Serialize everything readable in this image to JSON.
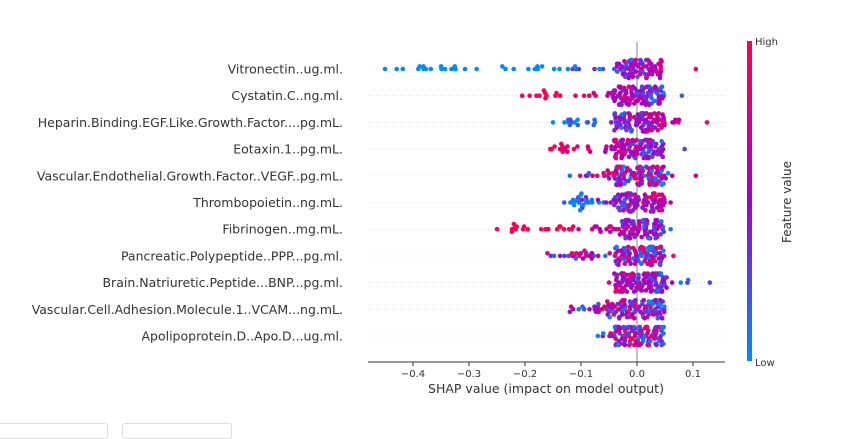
{
  "chart_data": {
    "type": "scatter",
    "subtype": "shap-beeswarm",
    "xlabel": "SHAP value (impact on model output)",
    "xticks": [
      -0.4,
      -0.3,
      -0.2,
      -0.1,
      0.0,
      0.1
    ],
    "xtick_labels": [
      "−0.4",
      "−0.3",
      "−0.2",
      "−0.1",
      "0.0",
      "0.1"
    ],
    "xlim": [
      -0.48,
      0.155
    ],
    "features": [
      "Vitronectin..ug.ml.",
      "Cystatin.C..ng.ml.",
      "Heparin.Binding.EGF.Like.Growth.Factor....pg.mL.",
      "Eotaxin.1..pg.mL.",
      "Vascular.Endothelial.Growth.Factor..VEGF..pg.mL.",
      "Thrombopoietin..ng.mL.",
      "Fibrinogen..mg.mL.",
      "Pancreatic.Polypeptide..PPP...pg.ml.",
      "Brain.Natriuretic.Peptide...BNP...pg.ml.",
      "Vascular.Cell.Adhesion.Molecule.1..VCAM...ng.mL.",
      "Apolipoprotein.D..Apo.D...ug.ml."
    ],
    "feature_ranges": [
      {
        "min": -0.45,
        "max": 0.105,
        "low_side": "negative"
      },
      {
        "min": -0.205,
        "max": 0.08,
        "low_side": "positive"
      },
      {
        "min": -0.15,
        "max": 0.125,
        "low_side": "negative"
      },
      {
        "min": -0.155,
        "max": 0.085,
        "low_side": "positive"
      },
      {
        "min": -0.12,
        "max": 0.105,
        "low_side": "mixed"
      },
      {
        "min": -0.13,
        "max": 0.06,
        "low_side": "negative"
      },
      {
        "min": -0.25,
        "max": 0.06,
        "low_side": "positive"
      },
      {
        "min": -0.16,
        "max": 0.065,
        "low_side": "mixed"
      },
      {
        "min": -0.05,
        "max": 0.13,
        "low_side": "positive"
      },
      {
        "min": -0.12,
        "max": 0.045,
        "low_side": "mixed"
      },
      {
        "min": -0.07,
        "max": 0.045,
        "low_side": "mixed"
      }
    ],
    "colorbar": {
      "title": "Feature value",
      "high_label": "High",
      "low_label": "Low",
      "low_color": "#008bfb",
      "high_color": "#ff0052"
    }
  }
}
